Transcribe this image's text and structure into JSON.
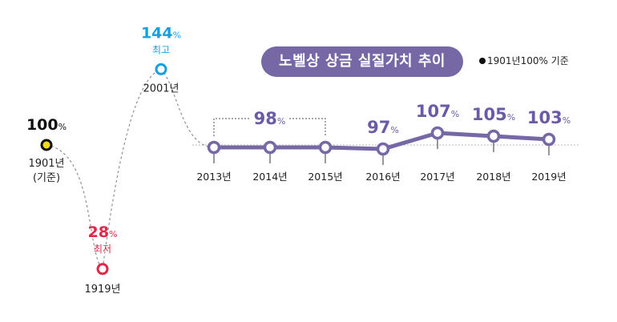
{
  "title": "노벨상 상금 실질가치 추이",
  "note": "1901년100% 기준",
  "colors": {
    "purple": "#7667a5",
    "purple_text": "#6b5aa6",
    "yellow": "#f2dc17",
    "blue": "#1a9fe0",
    "red": "#e0294a",
    "gray_line": "#888888",
    "baseline": "#c8c8c8"
  },
  "chart_data": {
    "type": "line",
    "title": "노벨상 상금 실질가치 추이",
    "unit": "%",
    "history_points": [
      {
        "label": "1901년",
        "sublabel": "(기준)",
        "value": 100,
        "value_text": "100"
      },
      {
        "label": "1919년",
        "value": 28,
        "value_text": "28",
        "tag": "최저"
      },
      {
        "label": "2001년",
        "value": 144,
        "value_text": "144",
        "tag": "최고"
      }
    ],
    "recent_series": {
      "x": [
        "2013년",
        "2014년",
        "2015년",
        "2016년",
        "2017년",
        "2018년",
        "2019년"
      ],
      "values": [
        98,
        98,
        98,
        97,
        107,
        105,
        103
      ],
      "data_labels": [
        {
          "text": "98",
          "applies_to": [
            "2013년",
            "2014년",
            "2015년"
          ]
        },
        {
          "text": "97",
          "applies_to": [
            "2016년"
          ]
        },
        {
          "text": "107",
          "applies_to": [
            "2017년"
          ]
        },
        {
          "text": "105",
          "applies_to": [
            "2018년"
          ]
        },
        {
          "text": "103",
          "applies_to": [
            "2019년"
          ]
        }
      ]
    },
    "reference_line": 100
  }
}
